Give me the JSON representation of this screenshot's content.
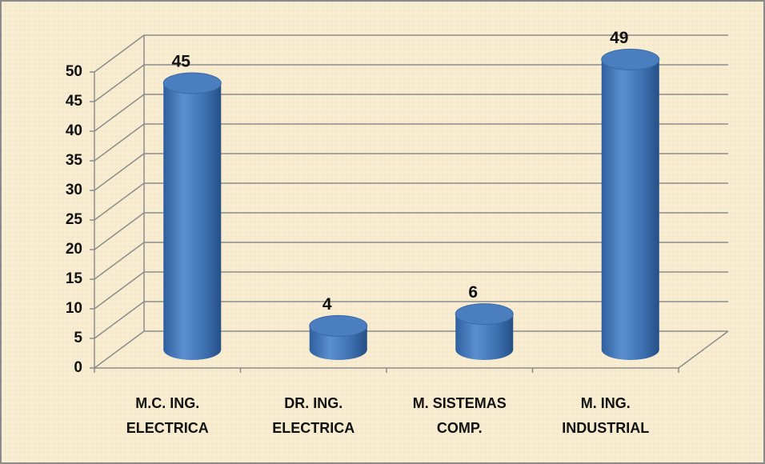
{
  "chart_data": {
    "type": "bar",
    "categories": [
      [
        "M.C. ING.",
        "ELECTRICA"
      ],
      [
        "DR. ING.",
        "ELECTRICA"
      ],
      [
        "M. SISTEMAS",
        "COMP."
      ],
      [
        "M. ING.",
        "INDUSTRIAL"
      ]
    ],
    "values": [
      45,
      4,
      6,
      49
    ],
    "color": "#4a7ebf",
    "ylim": [
      0,
      50
    ],
    "yticks": [
      0,
      5,
      10,
      15,
      20,
      25,
      30,
      35,
      40,
      45,
      50
    ],
    "grid": true
  }
}
